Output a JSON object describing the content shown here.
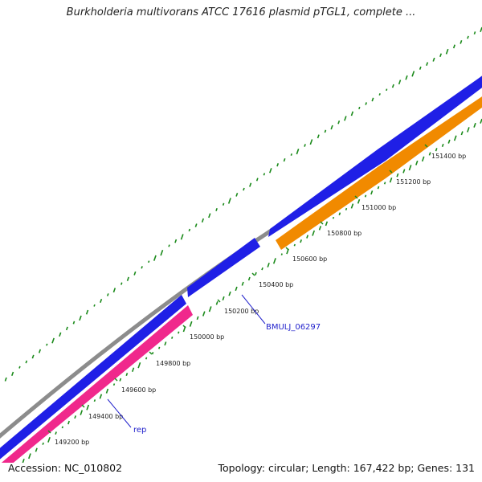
{
  "title": "Burkholderia multivorans ATCC 17616 plasmid pTGL1, complete ...",
  "accession": "Accession: NC_010802",
  "stats": "Topology: circular; Length: 167,422 bp; Genes: 131",
  "colors": {
    "backbone": "#8c8c8c",
    "cds_forward": "#1f1fe6",
    "cds_reverse": "#f18a00",
    "gene_rep": "#f0288c",
    "gc_ticks": "#1a8a1a",
    "label_text": "#2222cc"
  },
  "tick_labels": [
    "149200 bp",
    "149400 bp",
    "149600 bp",
    "149800 bp",
    "150000 bp",
    "150200 bp",
    "150400 bp",
    "150600 bp",
    "150800 bp",
    "151000 bp",
    "151200 bp",
    "151400 bp"
  ],
  "gene_labels": [
    "rep",
    "BMULJ_06297"
  ]
}
